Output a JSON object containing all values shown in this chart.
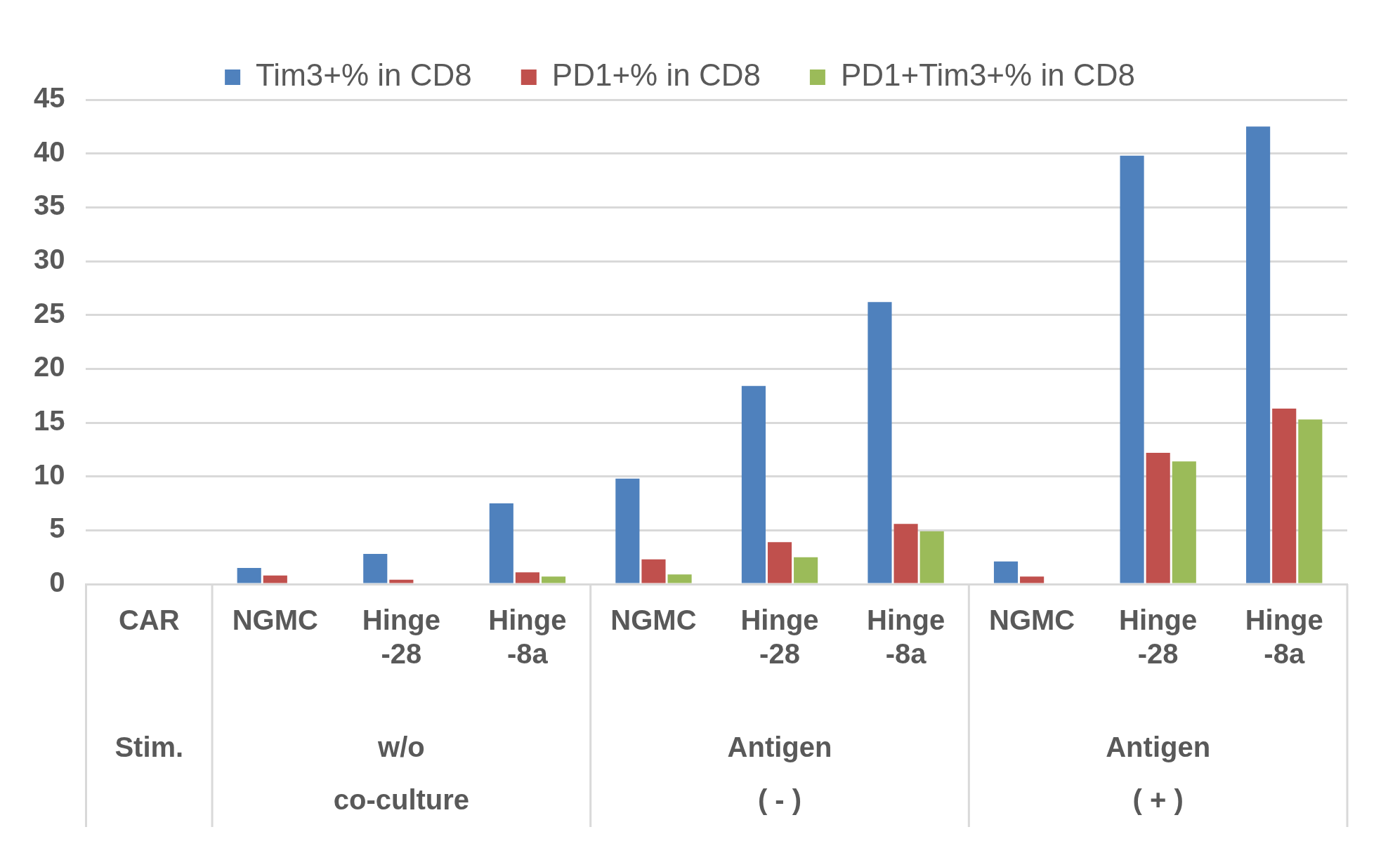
{
  "chart_data": {
    "type": "bar",
    "categories": [
      "CAR",
      "NGMC",
      "Hinge\n-28",
      "Hinge\n-8a",
      "NGMC",
      "Hinge\n-28",
      "Hinge\n-8a",
      "NGMC",
      "Hinge\n-28",
      "Hinge\n-8a"
    ],
    "series": [
      {
        "name": "Tim3+% in CD8",
        "color": "#4f81bd",
        "values": [
          null,
          1.5,
          2.8,
          7.5,
          9.8,
          18.4,
          26.2,
          2.1,
          39.8,
          42.5
        ]
      },
      {
        "name": "PD1+% in CD8",
        "color": "#c0504d",
        "values": [
          null,
          0.8,
          0.4,
          1.1,
          2.3,
          3.9,
          5.6,
          0.7,
          12.2,
          16.3
        ]
      },
      {
        "name": "PD1+Tim3+% in CD8",
        "color": "#9bbb59",
        "values": [
          null,
          null,
          null,
          0.7,
          0.9,
          2.5,
          4.9,
          null,
          11.4,
          15.3
        ]
      }
    ],
    "ylim": [
      0,
      45
    ],
    "yticks": [
      0,
      5,
      10,
      15,
      20,
      25,
      30,
      35,
      40,
      45
    ],
    "grid": "y",
    "legend": "top",
    "annotations": [
      "Stim.",
      "w/o\nco-culture",
      "Antigen\n( - )",
      "Antigen\n( + )"
    ]
  }
}
